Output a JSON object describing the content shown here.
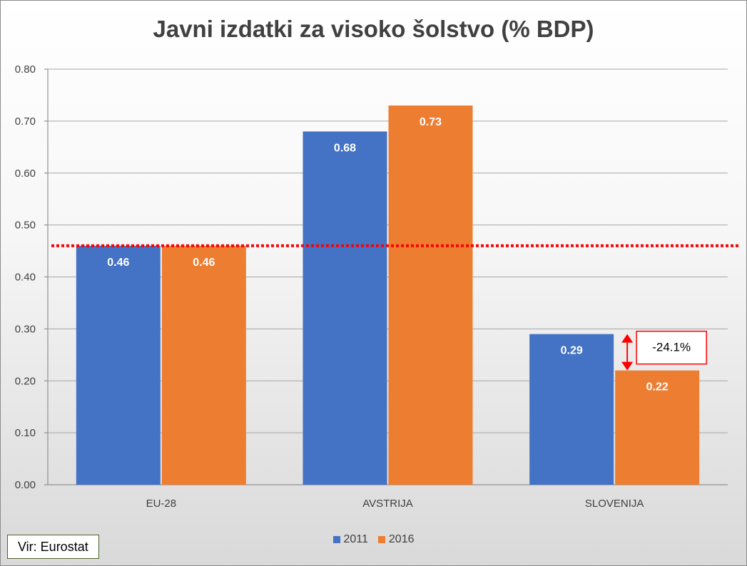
{
  "chart_data": {
    "type": "bar",
    "title": "Javni izdatki za visoko šolstvo (% BDP)",
    "categories": [
      "EU-28",
      "AVSTRIJA",
      "SLOVENIJA"
    ],
    "series": [
      {
        "name": "2011",
        "values": [
          0.46,
          0.68,
          0.29
        ],
        "labels": [
          "0.46",
          "0.68",
          "0.29"
        ],
        "color": "#4472c4"
      },
      {
        "name": "2016",
        "values": [
          0.46,
          0.73,
          0.22
        ],
        "labels": [
          "0.46",
          "0.73",
          "0.22"
        ],
        "color": "#ed7d31"
      }
    ],
    "ylim": [
      0,
      0.8
    ],
    "yticks": [
      "0.00",
      "0.10",
      "0.20",
      "0.30",
      "0.40",
      "0.50",
      "0.60",
      "0.70",
      "0.80"
    ],
    "grid": true,
    "legend_position": "bottom",
    "reference_line": {
      "value": 0.46,
      "style": "dotted",
      "color": "#ff0000"
    },
    "annotation": {
      "text": "-24.1%",
      "category": "SLOVENIJA",
      "from": 0.29,
      "to": 0.22,
      "color": "#ff0000"
    }
  },
  "source": "Vir: Eurostat"
}
